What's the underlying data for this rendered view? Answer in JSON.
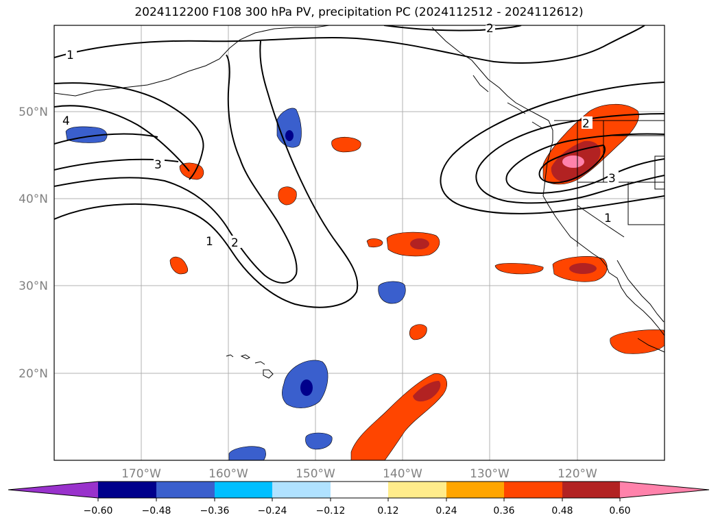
{
  "title": "2024112200 F108 300 hPa PV, precipitation PC (2024112512 - 2024112612)",
  "lat_labels": [
    "50°N",
    "40°N",
    "30°N",
    "20°N"
  ],
  "lon_labels": [
    "170°W",
    "160°W",
    "150°W",
    "140°W",
    "130°W",
    "120°W"
  ],
  "colorbar": {
    "tick_labels": [
      "−0.60",
      "−0.48",
      "−0.36",
      "−0.24",
      "−0.12",
      "0.12",
      "0.24",
      "0.36",
      "0.48",
      "0.60"
    ],
    "colors": [
      "#9932cc",
      "#00008b",
      "#3a5fcd",
      "#00bfff",
      "#b0e2ff",
      "#ffffff",
      "#ffec8b",
      "#ffa500",
      "#ff4500",
      "#b22222",
      "#ff82ab"
    ]
  },
  "contour_labels": [
    {
      "text": "1",
      "name": "pv-label-1-nw"
    },
    {
      "text": "4",
      "name": "pv-label-4"
    },
    {
      "text": "3",
      "name": "pv-label-3-west"
    },
    {
      "text": "1",
      "name": "pv-label-1-trough"
    },
    {
      "text": "2",
      "name": "pv-label-2-trough"
    },
    {
      "text": "2",
      "name": "pv-label-2-north"
    },
    {
      "text": "2",
      "name": "pv-label-2-coast"
    },
    {
      "text": "3",
      "name": "pv-label-3-coast"
    },
    {
      "text": "1",
      "name": "pv-label-1-coast"
    }
  ],
  "colors": {
    "coast": "#000000",
    "contour": "#000000",
    "grid": "#b0b0b0",
    "axis_label": "#808080"
  }
}
